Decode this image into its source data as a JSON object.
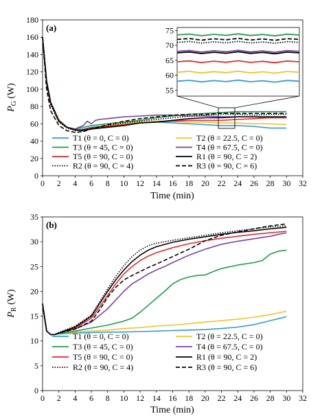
{
  "charts": [
    {
      "id": "a",
      "panel_label": "(a)",
      "ylabel_main": "P",
      "ylabel_sub": "G",
      "ylabel_unit": " (W)",
      "xlabel": "Time (min)",
      "x_ticks": [
        "0",
        "2",
        "4",
        "6",
        "8",
        "10",
        "12",
        "14",
        "16",
        "18",
        "20",
        "22",
        "24",
        "26",
        "28",
        "30",
        "32"
      ],
      "y_ticks": [
        "0",
        "20",
        "40",
        "60",
        "80",
        "100",
        "120",
        "140",
        "160",
        "180"
      ],
      "inset_y_ticks": [
        "55",
        "60",
        "65",
        "70",
        "75"
      ]
    },
    {
      "id": "b",
      "panel_label": "(b)",
      "ylabel_main": "P",
      "ylabel_sub": "R",
      "ylabel_unit": " (W)",
      "xlabel": "Time (min)",
      "x_ticks": [
        "0",
        "2",
        "4",
        "6",
        "8",
        "10",
        "12",
        "14",
        "16",
        "18",
        "20",
        "22",
        "24",
        "26",
        "28",
        "30",
        "32"
      ],
      "y_ticks": [
        "0",
        "5",
        "10",
        "15",
        "20",
        "25",
        "30",
        "35"
      ]
    }
  ],
  "legend": [
    {
      "label": "T1 (θ = 0, C = 0)",
      "color": "#2E9BD6",
      "dash": "solid"
    },
    {
      "label": "T2 (θ = 22.5, C = 0)",
      "color": "#F5C02B",
      "dash": "solid"
    },
    {
      "label": "T3 (θ = 45, C = 0)",
      "color": "#1E9B4B",
      "dash": "solid"
    },
    {
      "label": "T4 (θ = 67.5, C = 0)",
      "color": "#7A3FA6",
      "dash": "solid"
    },
    {
      "label": "T5 (θ = 90, C = 0)",
      "color": "#E8262A",
      "dash": "solid"
    },
    {
      "label": "R1 (θ = 90, C = 2)",
      "color": "#000000",
      "dash": "solid"
    },
    {
      "label": "R2 (θ = 90, C = 4)",
      "color": "#000000",
      "dash": "dotted"
    },
    {
      "label": "R3 (θ = 90, C = 6)",
      "color": "#000000",
      "dash": "dashed"
    }
  ],
  "chart_data": [
    {
      "type": "line",
      "xlabel": "Time (min)",
      "ylabel": "P_G (W)",
      "xlim": [
        0,
        32
      ],
      "ylim": [
        0,
        180
      ],
      "grid": false,
      "inset": {
        "xlim": [
          22,
          24
        ],
        "ylim": [
          53,
          76
        ]
      },
      "series": [
        {
          "name": "T1 (θ = 0, C = 0)",
          "x": [
            0,
            0.5,
            1,
            2,
            3,
            4,
            5,
            6,
            8,
            10,
            12,
            14,
            16,
            18,
            20,
            22,
            24,
            26,
            28,
            30
          ],
          "y": [
            160,
            110,
            85,
            65,
            56,
            53,
            54,
            56,
            58,
            60,
            61,
            62,
            61,
            60,
            59,
            58,
            58,
            57,
            55,
            55
          ]
        },
        {
          "name": "T2 (θ = 22.5, C = 0)",
          "x": [
            0,
            0.5,
            1,
            2,
            3,
            4,
            5,
            6,
            8,
            10,
            12,
            14,
            16,
            18,
            20,
            22,
            24,
            26,
            28,
            30
          ],
          "y": [
            160,
            110,
            85,
            65,
            56,
            53,
            53,
            55,
            58,
            60,
            62,
            63,
            63,
            62,
            62,
            61,
            61,
            60,
            60,
            59
          ]
        },
        {
          "name": "T3 (θ = 45, C = 0)",
          "x": [
            0,
            0.5,
            1,
            2,
            3,
            4,
            5,
            6,
            8,
            10,
            12,
            14,
            16,
            18,
            20,
            22,
            24,
            26,
            28,
            30
          ],
          "y": [
            160,
            110,
            85,
            64,
            56,
            54,
            56,
            58,
            60,
            62,
            64,
            67,
            69,
            71,
            72,
            73,
            74,
            74,
            74,
            74
          ]
        },
        {
          "name": "T4 (θ = 67.5, C = 0)",
          "x": [
            0,
            0.5,
            1,
            2,
            3,
            4,
            5,
            5.5,
            6,
            6.5,
            7,
            8,
            10,
            12,
            14,
            16,
            18,
            20,
            22,
            24,
            26,
            28,
            30
          ],
          "y": [
            160,
            110,
            85,
            64,
            56,
            54,
            58,
            63,
            60,
            64,
            65,
            66,
            68,
            69,
            70,
            70,
            69,
            69,
            68,
            68,
            68,
            67,
            67
          ]
        },
        {
          "name": "T5 (θ = 90, C = 0)",
          "x": [
            0,
            0.5,
            1,
            2,
            3,
            4,
            5,
            6,
            8,
            10,
            12,
            14,
            16,
            18,
            20,
            22,
            24,
            26,
            28,
            30
          ],
          "y": [
            160,
            108,
            84,
            63,
            56,
            53,
            53,
            55,
            57,
            59,
            61,
            62,
            63,
            64,
            64,
            64,
            65,
            66,
            67,
            67
          ]
        },
        {
          "name": "R1 (θ = 90, C = 2)",
          "x": [
            0,
            0.5,
            1,
            2,
            3,
            4,
            5,
            6,
            8,
            10,
            12,
            14,
            16,
            18,
            20,
            22,
            24,
            26,
            28,
            30
          ],
          "y": [
            160,
            108,
            84,
            63,
            56,
            53,
            52,
            54,
            56,
            58,
            61,
            62,
            64,
            66,
            67,
            67,
            68,
            68,
            68,
            68
          ]
        },
        {
          "name": "R2 (θ = 90, C = 4)",
          "x": [
            0,
            0.5,
            1,
            2,
            3,
            4,
            5,
            6,
            8,
            10,
            12,
            14,
            16,
            18,
            20,
            22,
            24,
            26,
            28,
            30
          ],
          "y": [
            160,
            106,
            82,
            62,
            55,
            52,
            53,
            55,
            58,
            61,
            63,
            65,
            67,
            69,
            70,
            71,
            71,
            70,
            71,
            71
          ]
        },
        {
          "name": "R3 (θ = 90, C = 6)",
          "x": [
            0,
            0.5,
            1,
            2,
            3,
            4,
            5,
            6,
            8,
            10,
            12,
            14,
            16,
            18,
            20,
            22,
            24,
            26,
            28,
            30
          ],
          "y": [
            160,
            100,
            75,
            58,
            52,
            50,
            51,
            54,
            59,
            63,
            66,
            68,
            70,
            71,
            71,
            72,
            72,
            72,
            72,
            72
          ]
        }
      ]
    },
    {
      "type": "line",
      "xlabel": "Time (min)",
      "ylabel": "P_R (W)",
      "xlim": [
        0,
        32
      ],
      "ylim": [
        0,
        35
      ],
      "grid": false,
      "series": [
        {
          "name": "T1 (θ = 0, C = 0)",
          "x": [
            0,
            0.5,
            1,
            1.5,
            2,
            4,
            6,
            8,
            10,
            12,
            14,
            16,
            18,
            20,
            22,
            24,
            26,
            28,
            30
          ],
          "y": [
            17.5,
            12,
            11.3,
            11.3,
            11.4,
            11.6,
            11.7,
            11.8,
            11.8,
            11.9,
            12,
            12.1,
            12.2,
            12.3,
            12.5,
            12.8,
            13.3,
            14.1,
            14.9
          ]
        },
        {
          "name": "T2 (θ = 22.5, C = 0)",
          "x": [
            0,
            0.5,
            1,
            1.5,
            2,
            4,
            6,
            8,
            10,
            12,
            14,
            16,
            18,
            20,
            22,
            24,
            26,
            28,
            30
          ],
          "y": [
            17.5,
            12,
            11.3,
            11.3,
            11.5,
            11.8,
            12,
            12.2,
            12.5,
            12.7,
            13,
            13.2,
            13.5,
            13.8,
            14.1,
            14.4,
            14.8,
            15.3,
            16
          ]
        },
        {
          "name": "T3 (θ = 45, C = 0)",
          "x": [
            0,
            0.5,
            1,
            1.5,
            2,
            4,
            6,
            8,
            10,
            11,
            12,
            13,
            14,
            15,
            16,
            17,
            18,
            19,
            20,
            21,
            22,
            24,
            26,
            27,
            28,
            29,
            30
          ],
          "y": [
            17.5,
            12,
            11.3,
            11.3,
            11.5,
            12,
            12.6,
            13.2,
            14,
            14.6,
            15.8,
            17.2,
            18.6,
            20,
            21.5,
            22.4,
            22.9,
            23.2,
            23.3,
            24,
            24.6,
            25.3,
            25.8,
            26.2,
            27.5,
            28.1,
            28.3
          ]
        },
        {
          "name": "T4 (θ = 67.5, C = 0)",
          "x": [
            0,
            0.5,
            1,
            1.5,
            2,
            4,
            6,
            8,
            10,
            11,
            12,
            13,
            14,
            15,
            16,
            18,
            20,
            22,
            24,
            26,
            28,
            29,
            30
          ],
          "y": [
            17.5,
            12,
            11.3,
            11.3,
            11.6,
            12.4,
            13.8,
            16.5,
            20,
            21.5,
            22.5,
            23.5,
            24.3,
            25,
            25.8,
            27.3,
            28.5,
            29.5,
            30.1,
            30.6,
            31.1,
            31.5,
            31.8
          ]
        },
        {
          "name": "T5 (θ = 90, C = 0)",
          "x": [
            0,
            0.5,
            1,
            1.5,
            2,
            4,
            6,
            7,
            8,
            9,
            10,
            11,
            12,
            13,
            14,
            16,
            18,
            20,
            22,
            24,
            26,
            28,
            30
          ],
          "y": [
            17.5,
            12,
            11.3,
            11.3,
            11.6,
            12.6,
            14.6,
            16.8,
            19.2,
            21.5,
            23.5,
            25,
            26.2,
            27.1,
            27.8,
            28.8,
            29.6,
            30.2,
            30.7,
            31.1,
            31.5,
            31.8,
            32.1
          ]
        },
        {
          "name": "R1 (θ = 90, C = 2)",
          "x": [
            0,
            0.5,
            1,
            1.5,
            2,
            4,
            6,
            7,
            8,
            9,
            10,
            11,
            12,
            13,
            14,
            16,
            18,
            20,
            22,
            24,
            26,
            28,
            30
          ],
          "y": [
            17.5,
            12,
            11.3,
            11.3,
            11.6,
            12.8,
            15,
            17.5,
            20,
            22.3,
            24.3,
            26,
            27.3,
            28.3,
            29,
            29.9,
            30.5,
            31,
            31.5,
            31.9,
            32.2,
            32.6,
            32.9
          ]
        },
        {
          "name": "R2 (θ = 90, C = 4)",
          "x": [
            0,
            0.5,
            1,
            1.5,
            2,
            4,
            6,
            7,
            8,
            9,
            10,
            11,
            12,
            13,
            14,
            16,
            18,
            20,
            22,
            24,
            26,
            28,
            30
          ],
          "y": [
            17.5,
            12,
            11.3,
            11.3,
            11.7,
            13,
            15.2,
            17.8,
            20.5,
            23,
            25.2,
            27,
            28.3,
            29.2,
            29.7,
            30.3,
            30.8,
            31.3,
            31.8,
            32.2,
            32.6,
            33,
            33.2
          ]
        },
        {
          "name": "R3 (θ = 90, C = 6)",
          "x": [
            0,
            0.5,
            1,
            1.5,
            2,
            4,
            6,
            7,
            8,
            9,
            10,
            11,
            12,
            13,
            14,
            16,
            18,
            20,
            22,
            24,
            26,
            28,
            30
          ],
          "y": [
            17.5,
            12,
            11.3,
            11.3,
            11.6,
            12.4,
            14,
            16.2,
            18.8,
            20.8,
            22.3,
            23.2,
            24,
            24.8,
            25.5,
            27,
            28.5,
            30.2,
            31.3,
            32,
            32.6,
            33.2,
            33.6
          ]
        }
      ]
    }
  ]
}
